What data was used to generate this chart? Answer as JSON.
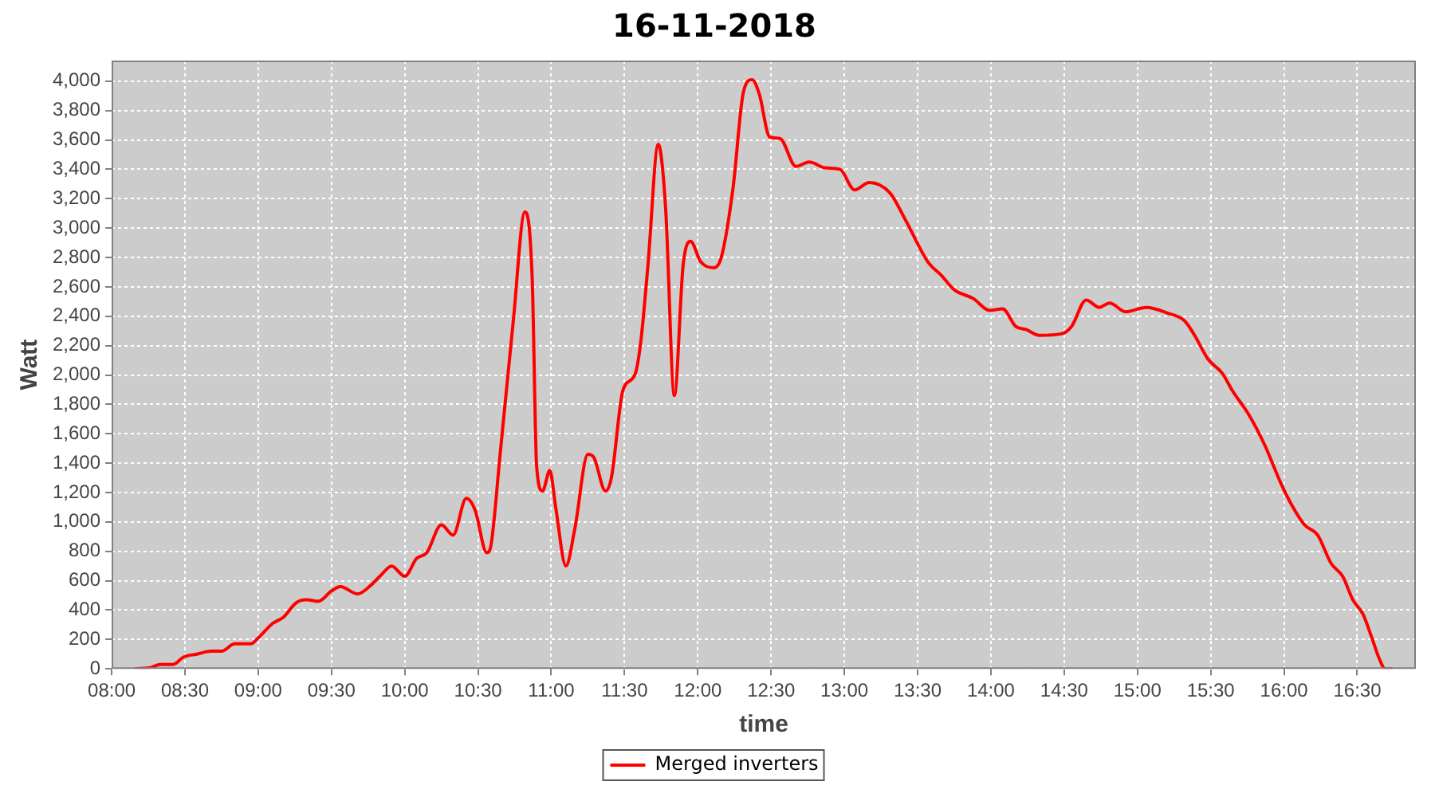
{
  "chart_data": {
    "type": "line",
    "title": "16-11-2018",
    "xlabel": "time",
    "ylabel": "Watt",
    "xlim": [
      8,
      16.9
    ],
    "ylim": [
      0,
      4140
    ],
    "xticks": [
      {
        "value": 8,
        "label": "08:00"
      },
      {
        "value": 8.5,
        "label": "08:30"
      },
      {
        "value": 9,
        "label": "09:00"
      },
      {
        "value": 9.5,
        "label": "09:30"
      },
      {
        "value": 10,
        "label": "10:00"
      },
      {
        "value": 10.5,
        "label": "10:30"
      },
      {
        "value": 11,
        "label": "11:00"
      },
      {
        "value": 11.5,
        "label": "11:30"
      },
      {
        "value": 12,
        "label": "12:00"
      },
      {
        "value": 12.5,
        "label": "12:30"
      },
      {
        "value": 13,
        "label": "13:00"
      },
      {
        "value": 13.5,
        "label": "13:30"
      },
      {
        "value": 14,
        "label": "14:00"
      },
      {
        "value": 14.5,
        "label": "14:30"
      },
      {
        "value": 15,
        "label": "15:00"
      },
      {
        "value": 15.5,
        "label": "15:30"
      },
      {
        "value": 16,
        "label": "16:00"
      },
      {
        "value": 16.5,
        "label": "16:30"
      }
    ],
    "yticks": [
      0,
      200,
      400,
      600,
      800,
      {
        "value": 1000,
        "label": "1,000"
      },
      {
        "value": 1200,
        "label": "1,200"
      },
      {
        "value": 1400,
        "label": "1,400"
      },
      {
        "value": 1600,
        "label": "1,600"
      },
      {
        "value": 1800,
        "label": "1,800"
      },
      {
        "value": 2000,
        "label": "2,000"
      },
      {
        "value": 2200,
        "label": "2,200"
      },
      {
        "value": 2400,
        "label": "2,400"
      },
      {
        "value": 2600,
        "label": "2,600"
      },
      {
        "value": 2800,
        "label": "2,800"
      },
      {
        "value": 3000,
        "label": "3,000"
      },
      {
        "value": 3200,
        "label": "3,200"
      },
      {
        "value": 3400,
        "label": "3,400"
      },
      {
        "value": 3600,
        "label": "3,600"
      },
      {
        "value": 3800,
        "label": "3,800"
      },
      {
        "value": 4000,
        "label": "4,000"
      }
    ],
    "grid": true,
    "legend": "bottom",
    "marker": "none",
    "line_style": "solid",
    "x": [
      8.16,
      8.27,
      8.33,
      8.42,
      8.49,
      8.58,
      8.68,
      8.75,
      8.84,
      8.95,
      9.0,
      9.1,
      9.17,
      9.26,
      9.33,
      9.41,
      9.5,
      9.56,
      9.68,
      9.77,
      9.84,
      9.91,
      10.0,
      10.08,
      10.15,
      10.25,
      10.33,
      10.42,
      10.48,
      10.56,
      10.59,
      10.65,
      10.74,
      10.82,
      10.87,
      10.9,
      10.94,
      10.99,
      11.03,
      11.1,
      11.16,
      11.25,
      11.29,
      11.37,
      11.41,
      11.49,
      11.57,
      11.61,
      11.66,
      11.73,
      11.78,
      11.84,
      11.9,
      11.95,
      12.02,
      12.11,
      12.16,
      12.24,
      12.31,
      12.37,
      12.42,
      12.49,
      12.56,
      12.67,
      12.76,
      12.87,
      12.97,
      13.07,
      13.17,
      13.31,
      13.42,
      13.57,
      13.66,
      13.75,
      13.88,
      13.99,
      14.08,
      14.17,
      14.24,
      14.33,
      14.48,
      14.55,
      14.65,
      14.74,
      14.81,
      14.92,
      15.06,
      15.21,
      15.32,
      15.39,
      15.48,
      15.58,
      15.65,
      15.76,
      15.87,
      15.98,
      16.05,
      16.14,
      16.23,
      16.32,
      16.4,
      16.47,
      16.54,
      16.6,
      16.65,
      16.69,
      16.74
    ],
    "series": [
      {
        "name": "Merged inverters",
        "color": "#ff0000",
        "values": [
          0,
          10,
          30,
          30,
          80,
          100,
          120,
          120,
          170,
          170,
          210,
          310,
          350,
          450,
          470,
          460,
          530,
          560,
          510,
          570,
          640,
          700,
          630,
          750,
          790,
          980,
          910,
          1160,
          1080,
          790,
          850,
          1450,
          2360,
          3110,
          2650,
          1380,
          1210,
          1350,
          1100,
          700,
          950,
          1460,
          1440,
          1210,
          1300,
          1900,
          2000,
          2220,
          2750,
          3570,
          3140,
          1860,
          2750,
          2910,
          2770,
          2730,
          2800,
          3270,
          3920,
          4010,
          3910,
          3620,
          3610,
          3420,
          3450,
          3410,
          3400,
          3260,
          3310,
          3240,
          3050,
          2770,
          2680,
          2580,
          2520,
          2440,
          2450,
          2330,
          2310,
          2270,
          2280,
          2330,
          2510,
          2460,
          2490,
          2430,
          2460,
          2420,
          2370,
          2270,
          2110,
          2010,
          1890,
          1730,
          1520,
          1260,
          1120,
          980,
          910,
          720,
          630,
          470,
          370,
          210,
          70,
          0,
          0
        ]
      }
    ]
  }
}
